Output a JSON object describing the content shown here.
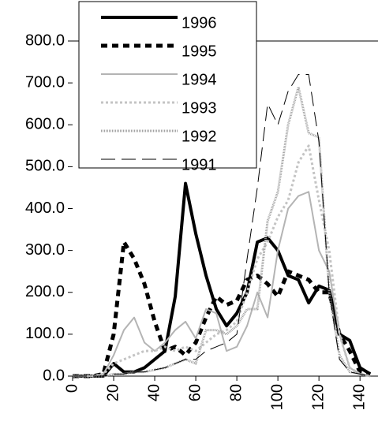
{
  "chart_data": {
    "type": "line",
    "x": [
      0,
      5,
      10,
      15,
      20,
      25,
      30,
      35,
      40,
      45,
      50,
      55,
      60,
      65,
      70,
      75,
      80,
      85,
      90,
      95,
      100,
      105,
      110,
      115,
      120,
      125,
      130,
      135,
      140,
      145
    ],
    "series": [
      {
        "name": "1996",
        "color": "#000000",
        "values": [
          0,
          0,
          0,
          0,
          30,
          10,
          10,
          20,
          40,
          60,
          190,
          460,
          340,
          240,
          160,
          120,
          150,
          200,
          320,
          330,
          300,
          240,
          230,
          175,
          215,
          205,
          100,
          85,
          20,
          5
        ]
      },
      {
        "name": "1995",
        "color": "#000000",
        "values": [
          0,
          0,
          0,
          5,
          100,
          320,
          280,
          220,
          130,
          60,
          70,
          50,
          80,
          140,
          190,
          170,
          180,
          230,
          240,
          220,
          190,
          250,
          240,
          230,
          200,
          200,
          100,
          60,
          10,
          5
        ]
      },
      {
        "name": "1994",
        "color": "#b4b4b4",
        "values": [
          0,
          0,
          0,
          5,
          50,
          110,
          140,
          80,
          60,
          80,
          110,
          130,
          90,
          160,
          150,
          60,
          70,
          120,
          200,
          140,
          300,
          400,
          430,
          440,
          300,
          250,
          100,
          20,
          5,
          0
        ]
      },
      {
        "name": "1993",
        "color": "#c4c4c4",
        "values": [
          0,
          0,
          0,
          5,
          30,
          40,
          50,
          60,
          60,
          70,
          60,
          70,
          60,
          80,
          100,
          110,
          130,
          200,
          280,
          320,
          380,
          420,
          510,
          550,
          420,
          300,
          100,
          20,
          5,
          0
        ]
      },
      {
        "name": "1992",
        "color": "#a0a0a0",
        "values": [
          0,
          0,
          0,
          0,
          5,
          5,
          10,
          10,
          15,
          20,
          30,
          40,
          30,
          110,
          110,
          100,
          120,
          160,
          160,
          370,
          440,
          600,
          690,
          580,
          570,
          200,
          50,
          10,
          5,
          0
        ]
      },
      {
        "name": "1991",
        "color": "#000000",
        "values": [
          0,
          0,
          0,
          0,
          5,
          5,
          10,
          10,
          15,
          20,
          30,
          40,
          40,
          60,
          70,
          80,
          100,
          280,
          450,
          650,
          600,
          680,
          720,
          720,
          560,
          200,
          40,
          10,
          5,
          0
        ]
      }
    ],
    "xlim": [
      0,
      148
    ],
    "xticks": [
      0,
      20,
      40,
      60,
      80,
      100,
      120,
      140
    ],
    "ylim": [
      0,
      800
    ],
    "yticks": [
      {
        "value": 0,
        "label": "0.0"
      },
      {
        "value": 100,
        "label": "100.0"
      },
      {
        "value": 200,
        "label": "200.0"
      },
      {
        "value": 300,
        "label": "300.0"
      },
      {
        "value": 400,
        "label": "400.0"
      },
      {
        "value": 500,
        "label": "500.0"
      },
      {
        "value": 600,
        "label": "600.0"
      },
      {
        "value": 700,
        "label": "700.0"
      },
      {
        "value": 800,
        "label": "800.0"
      }
    ],
    "legend": "upper-left"
  }
}
